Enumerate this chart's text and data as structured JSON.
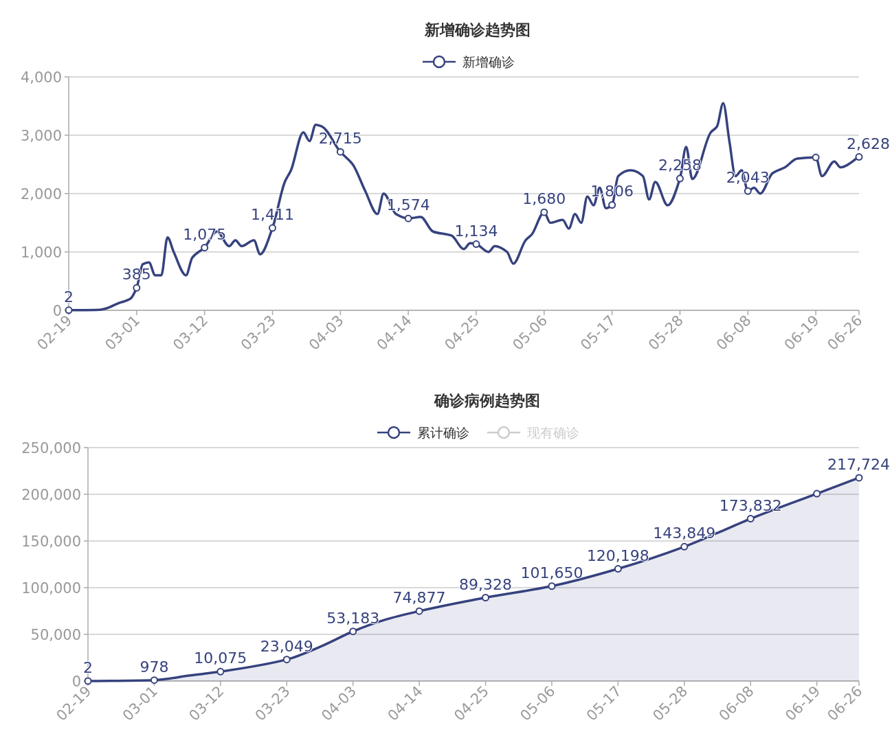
{
  "chart_data": [
    {
      "type": "line",
      "title": "新增确诊趋势图",
      "legend": "top",
      "grid": "y",
      "xlim": [
        "--02-19",
        "--06-26"
      ],
      "xticks": [
        {
          "value": "--02-19",
          "label": "02-19"
        },
        {
          "value": "--03-01",
          "label": "03-01"
        },
        {
          "value": "--03-12",
          "label": "03-12"
        },
        {
          "value": "--03-23",
          "label": "03-23"
        },
        {
          "value": "--04-03",
          "label": "04-03"
        },
        {
          "value": "--04-14",
          "label": "04-14"
        },
        {
          "value": "--04-25",
          "label": "04-25"
        },
        {
          "value": "--05-06",
          "label": "05-06"
        },
        {
          "value": "--05-17",
          "label": "05-17"
        },
        {
          "value": "--05-28",
          "label": "05-28"
        },
        {
          "value": "--06-08",
          "label": "06-08"
        },
        {
          "value": "--06-19",
          "label": "06-19"
        },
        {
          "value": "--06-26",
          "label": "06-26"
        }
      ],
      "ylim": [
        0,
        4000
      ],
      "yticks": [
        0,
        {
          "value": 1000,
          "label": "1,000"
        },
        {
          "value": 2000,
          "label": "2,000"
        },
        {
          "value": 3000,
          "label": "3,000"
        },
        {
          "value": 4000,
          "label": "4,000"
        }
      ],
      "x": [
        "--02-19",
        "--02-24",
        "--02-25",
        "--02-27",
        "--02-29",
        "--03-01",
        "--03-02",
        "--03-03",
        "--03-04",
        "--03-05",
        "--03-06",
        "--03-07",
        "--03-09",
        "--03-10",
        "--03-12",
        "--03-14",
        "--03-16",
        "--03-17",
        "--03-18",
        "--03-20",
        "--03-21",
        "--03-23",
        "--03-25",
        "--03-26",
        "--03-28",
        "--03-29",
        "--03-30",
        "--03-31",
        "--04-03",
        "--04-05",
        "--04-07",
        "--04-09",
        "--04-10",
        "--04-12",
        "--04-14",
        "--04-16",
        "--04-18",
        "--04-21",
        "--04-23",
        "--04-24",
        "--04-25",
        "--04-27",
        "--04-28",
        "--04-30",
        "--05-01",
        "--05-03",
        "--05-04",
        "--05-06",
        "--05-07",
        "--05-09",
        "--05-10",
        "--05-11",
        "--05-12",
        "--05-13",
        "--05-14",
        "--05-15",
        "--05-16",
        "--05-17",
        "--05-18",
        "--05-20",
        "--05-22",
        "--05-23",
        "--05-24",
        "--05-26",
        "--05-28",
        "--05-29",
        "--05-30",
        "--06-02",
        "--06-03",
        "--06-04",
        "--06-05",
        "--06-06",
        "--06-07",
        "--06-08",
        "--06-09",
        "--06-10",
        "--06-12",
        "--06-14",
        "--06-16",
        "--06-19",
        "--06-20",
        "--06-22",
        "--06-23",
        "--06-26"
      ],
      "series": [
        {
          "name": "新增确诊",
          "color": "#36427e",
          "values": [
            2,
            10,
            30,
            120,
            200,
            385,
            790,
            820,
            600,
            600,
            1250,
            1000,
            600,
            900,
            1075,
            1350,
            1100,
            1200,
            1100,
            1200,
            960,
            1411,
            2200,
            2400,
            3050,
            2900,
            3180,
            3150,
            2715,
            2500,
            2050,
            1650,
            2000,
            1650,
            1574,
            1600,
            1350,
            1280,
            1050,
            1150,
            1134,
            1000,
            1100,
            1000,
            800,
            1200,
            1300,
            1680,
            1500,
            1550,
            1400,
            1650,
            1500,
            1950,
            1800,
            2100,
            1750,
            1806,
            2300,
            2400,
            2300,
            1900,
            2200,
            1800,
            2258,
            2800,
            2250,
            3050,
            3150,
            3550,
            2900,
            2300,
            2400,
            2043,
            2100,
            2000,
            2350,
            2450,
            2600,
            2620,
            2300,
            2550,
            2450,
            2628
          ],
          "value_labels": [
            "2",
            null,
            null,
            null,
            null,
            "385",
            null,
            null,
            null,
            null,
            null,
            null,
            null,
            null,
            "1,075",
            null,
            null,
            null,
            null,
            null,
            null,
            "1,411",
            null,
            null,
            null,
            null,
            null,
            null,
            "2,715",
            null,
            null,
            null,
            null,
            null,
            "1,574",
            null,
            null,
            null,
            null,
            null,
            "1,134",
            null,
            null,
            null,
            null,
            null,
            null,
            "1,680",
            null,
            null,
            null,
            null,
            null,
            null,
            null,
            null,
            null,
            "1,806",
            null,
            null,
            null,
            null,
            null,
            null,
            "2,258",
            null,
            null,
            null,
            null,
            null,
            null,
            null,
            null,
            "2,043",
            null,
            null,
            null,
            null,
            null,
            null,
            null,
            null,
            null,
            "2,628"
          ]
        }
      ]
    },
    {
      "type": "area",
      "title": "确诊病例趋势图",
      "legend": "top",
      "grid": "y",
      "xlim": [
        "--02-19",
        "--06-26"
      ],
      "xticks": [
        {
          "value": "--02-19",
          "label": "02-19"
        },
        {
          "value": "--03-01",
          "label": "03-01"
        },
        {
          "value": "--03-12",
          "label": "03-12"
        },
        {
          "value": "--03-23",
          "label": "03-23"
        },
        {
          "value": "--04-03",
          "label": "04-03"
        },
        {
          "value": "--04-14",
          "label": "04-14"
        },
        {
          "value": "--04-25",
          "label": "04-25"
        },
        {
          "value": "--05-06",
          "label": "05-06"
        },
        {
          "value": "--05-17",
          "label": "05-17"
        },
        {
          "value": "--05-28",
          "label": "05-28"
        },
        {
          "value": "--06-08",
          "label": "06-08"
        },
        {
          "value": "--06-19",
          "label": "06-19"
        },
        {
          "value": "--06-26",
          "label": "06-26"
        }
      ],
      "ylim": [
        0,
        250000
      ],
      "yticks": [
        0,
        {
          "value": 50000,
          "label": "50,000"
        },
        {
          "value": 100000,
          "label": "100,000"
        },
        {
          "value": 150000,
          "label": "150,000"
        },
        {
          "value": 200000,
          "label": "200,000"
        },
        {
          "value": 250000,
          "label": "250,000"
        }
      ],
      "x": [
        "--02-19",
        "--03-01",
        "--03-07",
        "--03-12",
        "--03-23",
        "--03-29",
        "--04-03",
        "--04-08",
        "--04-14",
        "--04-25",
        "--05-06",
        "--05-17",
        "--05-28",
        "--06-03",
        "--06-08",
        "--06-19",
        "--06-26"
      ],
      "series": [
        {
          "name": "累计确诊",
          "color": "#36427e",
          "values": [
            2,
            978,
            6000,
            10075,
            23049,
            38000,
            53183,
            65000,
            74877,
            89328,
            101650,
            120198,
            143849,
            160000,
            173832,
            200700,
            217724
          ],
          "value_labels": [
            "2",
            "978",
            null,
            "10,075",
            "23,049",
            null,
            "53,183",
            null,
            "74,877",
            "89,328",
            "101,650",
            "120,198",
            "143,849",
            null,
            "173,832",
            null,
            "217,724"
          ]
        },
        {
          "name": "现有确诊",
          "color": "#cccccc",
          "values": [
            null,
            null,
            null,
            null,
            null,
            null,
            null,
            null,
            null,
            null,
            null,
            null,
            null,
            null,
            null,
            null,
            null
          ]
        }
      ]
    }
  ]
}
